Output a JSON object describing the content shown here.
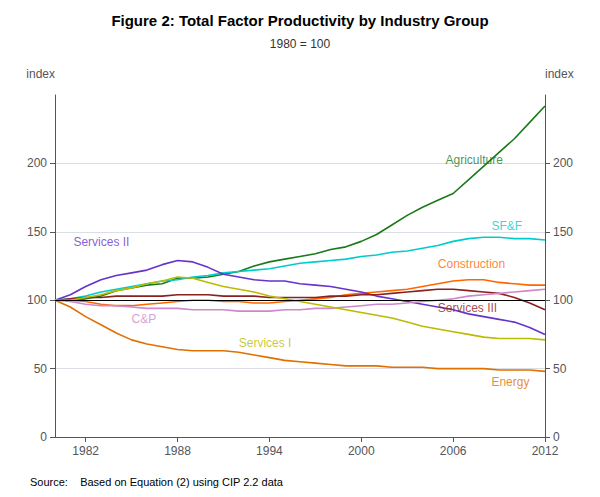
{
  "chart_data": {
    "type": "line",
    "title": "Figure 2: Total Factor Productivity by Industry Group",
    "subtitle": "1980 = 100",
    "y_label": "index",
    "y2_label": "index",
    "source": "Source:    Based on Equation (2) using CIP 2.2 data",
    "x": [
      1980,
      1981,
      1982,
      1983,
      1984,
      1985,
      1986,
      1987,
      1988,
      1989,
      1990,
      1991,
      1992,
      1993,
      1994,
      1995,
      1996,
      1997,
      1998,
      1999,
      2000,
      2001,
      2002,
      2003,
      2004,
      2005,
      2006,
      2007,
      2008,
      2009,
      2010,
      2011,
      2012
    ],
    "xlim": [
      1980,
      2012
    ],
    "xticks": [
      1982,
      1988,
      1994,
      2000,
      2006,
      2012
    ],
    "ylim": [
      0,
      250
    ],
    "yticks": [
      0,
      50,
      100,
      150,
      200
    ],
    "y2lim": [
      0,
      250
    ],
    "y2ticks": [
      0,
      50,
      100,
      150,
      200
    ],
    "grid": "y",
    "hlines": [
      {
        "y": 100,
        "color": "#000000"
      }
    ],
    "series": [
      {
        "name": "Agriculture",
        "color": "#1a7a1a",
        "values": [
          100,
          100,
          101,
          103,
          107,
          109,
          111,
          112,
          116,
          116,
          117,
          119,
          121,
          125,
          128,
          130,
          132,
          134,
          137,
          139,
          143,
          148,
          155,
          162,
          168,
          173,
          178,
          188,
          198,
          208,
          218,
          230,
          242
        ]
      },
      {
        "name": "SF&F",
        "color": "#00CCCC",
        "values": [
          100,
          101,
          103,
          106,
          108,
          110,
          112,
          114,
          115,
          117,
          118,
          120,
          121,
          122,
          123,
          125,
          127,
          128,
          129,
          130,
          132,
          133,
          135,
          136,
          138,
          140,
          143,
          145,
          146,
          146,
          145,
          145,
          144
        ]
      },
      {
        "name": "Construction",
        "color": "#FF6600",
        "values": [
          100,
          100,
          99,
          97,
          96,
          96,
          97,
          98,
          99,
          100,
          100,
          99,
          99,
          98,
          98,
          99,
          100,
          101,
          102,
          104,
          105,
          106,
          107,
          108,
          110,
          112,
          114,
          115,
          115,
          113,
          112,
          111,
          111
        ]
      },
      {
        "name": "Services II",
        "color": "#6633CC",
        "values": [
          100,
          104,
          110,
          115,
          118,
          120,
          122,
          126,
          129,
          128,
          124,
          119,
          117,
          115,
          114,
          114,
          112,
          111,
          110,
          108,
          106,
          103,
          101,
          99,
          97,
          95,
          93,
          90,
          88,
          86,
          84,
          80,
          75
        ]
      },
      {
        "name": "Services III",
        "color": "#8B2020",
        "values": [
          100,
          101,
          102,
          102,
          103,
          103,
          103,
          103,
          104,
          104,
          104,
          103,
          103,
          103,
          102,
          102,
          102,
          102,
          103,
          103,
          104,
          104,
          105,
          106,
          107,
          108,
          108,
          107,
          106,
          105,
          102,
          98,
          93
        ]
      },
      {
        "name": "C&P",
        "color": "#CC88CC",
        "values": [
          100,
          99,
          97,
          96,
          96,
          95,
          94,
          94,
          94,
          93,
          93,
          93,
          92,
          92,
          92,
          93,
          93,
          94,
          94,
          95,
          96,
          97,
          97,
          98,
          99,
          100,
          101,
          103,
          104,
          105,
          106,
          107,
          108
        ]
      },
      {
        "name": "Services I",
        "color": "#BBBB00",
        "values": [
          100,
          100,
          102,
          104,
          107,
          109,
          112,
          114,
          117,
          116,
          113,
          110,
          108,
          106,
          103,
          101,
          99,
          97,
          95,
          93,
          91,
          89,
          87,
          84,
          81,
          79,
          77,
          75,
          73,
          72,
          72,
          72,
          71
        ]
      },
      {
        "name": "Energy",
        "color": "#E07000",
        "values": [
          100,
          95,
          88,
          82,
          76,
          71,
          68,
          66,
          64,
          63,
          63,
          63,
          62,
          60,
          58,
          56,
          55,
          54,
          53,
          52,
          52,
          52,
          51,
          51,
          51,
          50,
          50,
          50,
          50,
          49,
          49,
          49,
          48
        ]
      }
    ],
    "annotations": [
      {
        "text": "Agriculture",
        "x": 2005.5,
        "y": 198
      },
      {
        "text": "SF&F",
        "x": 2008.5,
        "y": 150
      },
      {
        "text": "Construction",
        "x": 2005.0,
        "y": 122
      },
      {
        "text": "Services II",
        "x": 1981.2,
        "y": 138
      },
      {
        "text": "Services III",
        "x": 2005.0,
        "y": 90
      },
      {
        "text": "C&P",
        "x": 1985.0,
        "y": 82
      },
      {
        "text": "Services I",
        "x": 1992.0,
        "y": 64
      },
      {
        "text": "Energy",
        "x": 2008.5,
        "y": 36
      }
    ]
  }
}
